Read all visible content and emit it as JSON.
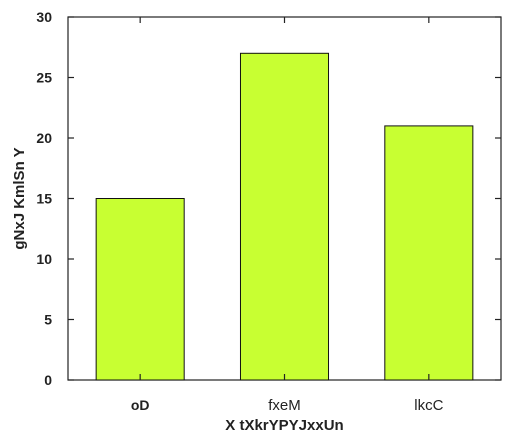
{
  "chart_data": {
    "type": "bar",
    "categories": [
      "oD",
      "fxeM",
      "lkcC"
    ],
    "category_bold": [
      true,
      false,
      false
    ],
    "values": [
      15,
      27,
      21
    ],
    "title": "",
    "xlabel": "X tXkrYPYJxxUn",
    "ylabel": "gNxJ KmlSn Y",
    "ylim": [
      0,
      30
    ],
    "yticks": [
      0,
      5,
      10,
      15,
      20,
      25,
      30
    ],
    "grid": false,
    "legend": "none",
    "bar_color": "#c8ff32",
    "edge_color": "#111111"
  }
}
